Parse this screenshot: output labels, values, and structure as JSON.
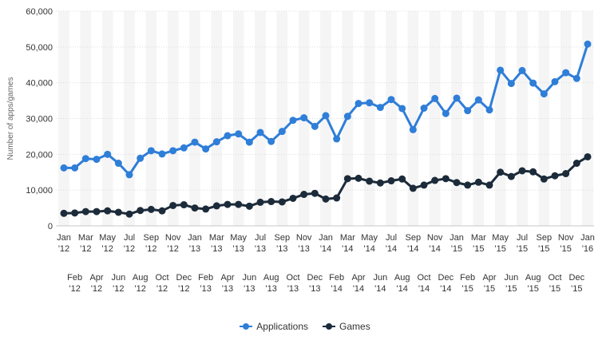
{
  "chart_data": {
    "type": "line",
    "ylabel": "Number of apps/games",
    "ylim": [
      0,
      60000
    ],
    "yticks": [
      "0",
      "10,000",
      "20,000",
      "30,000",
      "40,000",
      "50,000",
      "60,000"
    ],
    "ytick_values": [
      0,
      10000,
      20000,
      30000,
      40000,
      50000,
      60000
    ],
    "grid": true,
    "legend_position": "bottom",
    "categories": [
      "Jan '12",
      "Feb '12",
      "Mar '12",
      "Apr '12",
      "May '12",
      "Jun '12",
      "Jul '12",
      "Aug '12",
      "Sep '12",
      "Oct '12",
      "Nov '12",
      "Dec '12",
      "Jan '13",
      "Feb '13",
      "Mar '13",
      "Apr '13",
      "May '13",
      "Jun '13",
      "Jul '13",
      "Aug '13",
      "Sep '13",
      "Oct '13",
      "Nov '13",
      "Dec '13",
      "Jan '14",
      "Feb '14",
      "Mar '14",
      "Apr '14",
      "May '14",
      "Jun '14",
      "Jul '14",
      "Aug '14",
      "Sep '14",
      "Oct '14",
      "Nov '14",
      "Dec '14",
      "Jan '15",
      "Feb '15",
      "Mar '15",
      "Apr '15",
      "May '15",
      "Jun '15",
      "Jul '15",
      "Aug '15",
      "Sep '15",
      "Oct '15",
      "Nov '15",
      "Dec '15",
      "Jan '16"
    ],
    "tick_top": [
      "Jan",
      "Mar",
      "May",
      "Jul",
      "Sep",
      "Nov",
      "Jan",
      "Mar",
      "May",
      "Jul",
      "Sep",
      "Nov",
      "Jan",
      "Mar",
      "May",
      "Jul",
      "Sep",
      "Nov",
      "Jan",
      "Mar",
      "May",
      "Jul",
      "Sep",
      "Nov",
      "Jan"
    ],
    "tick_top_year": [
      "'12",
      "'12",
      "'12",
      "'12",
      "'12",
      "'12",
      "'13",
      "'13",
      "'13",
      "'13",
      "'13",
      "'13",
      "'14",
      "'14",
      "'14",
      "'14",
      "'14",
      "'14",
      "'15",
      "'15",
      "'15",
      "'15",
      "'15",
      "'15",
      "'16"
    ],
    "tick_bottom": [
      "Feb",
      "Apr",
      "Jun",
      "Aug",
      "Oct",
      "Dec",
      "Feb",
      "Apr",
      "Jun",
      "Aug",
      "Oct",
      "Dec",
      "Feb",
      "Apr",
      "Jun",
      "Aug",
      "Oct",
      "Dec",
      "Feb",
      "Apr",
      "Jun",
      "Aug",
      "Oct",
      "Dec"
    ],
    "tick_bottom_year": [
      "'12",
      "'12",
      "'12",
      "'12",
      "'12",
      "'12",
      "'13",
      "'13",
      "'13",
      "'13",
      "'13",
      "'13",
      "'14",
      "'14",
      "'14",
      "'14",
      "'14",
      "'14",
      "'15",
      "'15",
      "'15",
      "'15",
      "'15",
      "'15"
    ],
    "series": [
      {
        "name": "Applications",
        "color": "#2f7ed8",
        "values": [
          16200,
          16200,
          18800,
          18600,
          20000,
          17500,
          14300,
          18900,
          21000,
          20100,
          21000,
          21800,
          23400,
          21500,
          23500,
          25200,
          25700,
          23400,
          26100,
          23600,
          26400,
          29500,
          30200,
          27800,
          30800,
          24300,
          30600,
          34200,
          34400,
          33100,
          35300,
          32800,
          26900,
          32900,
          35600,
          31400,
          35700,
          32200,
          35200,
          32400,
          43500,
          39800,
          43400,
          39900,
          36900,
          40300,
          42800,
          41200,
          50800
        ]
      },
      {
        "name": "Games",
        "color": "#1c2b3a",
        "values": [
          3500,
          3600,
          4000,
          4000,
          4200,
          3800,
          3300,
          4300,
          4600,
          4200,
          5700,
          5900,
          5000,
          4700,
          5600,
          6000,
          6000,
          5500,
          6600,
          6800,
          6700,
          7700,
          8800,
          9100,
          7500,
          7800,
          13200,
          13300,
          12500,
          12000,
          12600,
          13100,
          10500,
          11400,
          12700,
          13200,
          12100,
          11400,
          12200,
          11400,
          15000,
          13800,
          15400,
          15100,
          13100,
          14000,
          14600,
          17500,
          19300
        ]
      }
    ]
  }
}
